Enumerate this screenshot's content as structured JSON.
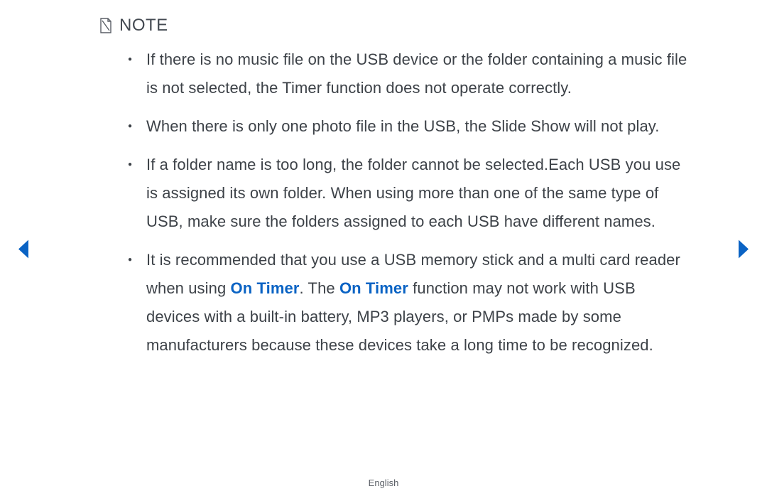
{
  "note": {
    "label": "NOTE",
    "bullets": [
      {
        "segments": [
          {
            "text": "If there is no music file on the USB device or the folder containing a music file is not selected, the Timer function does not operate correctly."
          }
        ]
      },
      {
        "segments": [
          {
            "text": "When there is only one photo file in the USB, the Slide Show will not play."
          }
        ]
      },
      {
        "segments": [
          {
            "text": "If a folder name is too long, the folder cannot be selected.Each USB you use is assigned its own folder. When using more than one of the same type of USB, make sure the folders assigned to each USB have different names."
          }
        ]
      },
      {
        "segments": [
          {
            "text": "It is recommended that you use a USB memory stick and a multi card reader when using "
          },
          {
            "text": "On Timer",
            "highlight": true
          },
          {
            "text": ". The "
          },
          {
            "text": "On Timer",
            "highlight": true
          },
          {
            "text": " function may not work with USB devices with a built-in battery, MP3 players, or PMPs made by some manufacturers because these devices take a long time to be recognized."
          }
        ]
      }
    ]
  },
  "nav": {
    "left_color": "#0a63c4",
    "right_color": "#0a63c4"
  },
  "footer": {
    "language": "English"
  },
  "colors": {
    "text": "#3d4248",
    "highlight": "#0a63c4",
    "icon_stroke": "#5a5f66"
  }
}
